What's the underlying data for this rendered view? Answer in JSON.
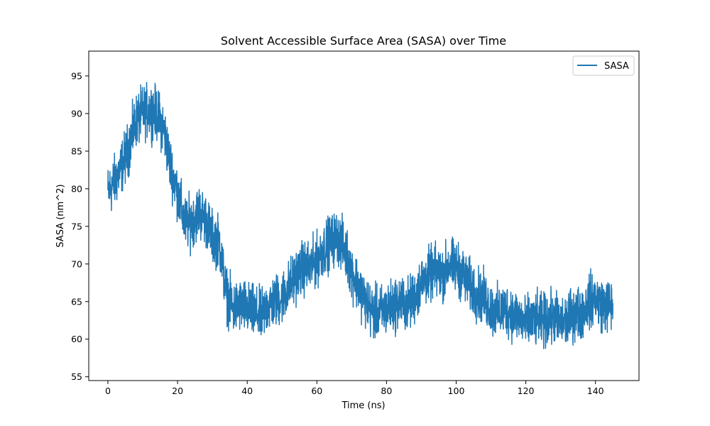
{
  "chart_data": {
    "type": "line",
    "title": "Solvent Accessible Surface Area (SASA) over Time",
    "xlabel": "Time (ns)",
    "ylabel": "SASA (nm^2)",
    "xlim": [
      -5.5,
      152.5
    ],
    "ylim": [
      54.5,
      98.3
    ],
    "xticks": [
      0,
      20,
      40,
      60,
      80,
      100,
      120,
      140
    ],
    "xtick_labels": [
      "0",
      "20",
      "40",
      "60",
      "80",
      "100",
      "120",
      "140"
    ],
    "yticks": [
      55,
      60,
      65,
      70,
      75,
      80,
      85,
      90,
      95
    ],
    "ytick_labels": [
      "55",
      "60",
      "65",
      "70",
      "75",
      "80",
      "85",
      "90",
      "95"
    ],
    "grid": false,
    "legend_position": "upper-right",
    "series": [
      {
        "name": "SASA",
        "color": "#1f77b4",
        "noise_amplitude": 3.2,
        "x": [
          0,
          2,
          4,
          6,
          8,
          10,
          12,
          14,
          16,
          18,
          20,
          22,
          24,
          26,
          28,
          30,
          32,
          34,
          36,
          38,
          40,
          42,
          44,
          46,
          48,
          50,
          52,
          54,
          56,
          58,
          60,
          62,
          64,
          66,
          68,
          70,
          72,
          74,
          76,
          78,
          80,
          82,
          84,
          86,
          88,
          90,
          92,
          94,
          96,
          98,
          100,
          102,
          104,
          106,
          108,
          110,
          112,
          114,
          116,
          118,
          120,
          122,
          124,
          126,
          128,
          130,
          132,
          134,
          136,
          138,
          140,
          142,
          144,
          145
        ],
        "y": [
          79.5,
          81.0,
          83.0,
          85.5,
          89.0,
          90.0,
          90.5,
          90.0,
          88.0,
          83.0,
          79.5,
          75.5,
          75.5,
          77.0,
          76.0,
          73.5,
          73.0,
          66.0,
          64.0,
          64.5,
          64.0,
          63.5,
          63.0,
          64.5,
          65.0,
          65.5,
          67.0,
          68.5,
          69.5,
          69.5,
          70.5,
          72.0,
          73.0,
          73.5,
          72.0,
          69.0,
          67.0,
          65.0,
          63.5,
          63.5,
          64.0,
          64.5,
          65.0,
          64.5,
          65.5,
          67.5,
          68.5,
          69.0,
          68.5,
          70.0,
          69.5,
          68.5,
          67.0,
          66.0,
          65.5,
          64.0,
          63.5,
          64.0,
          63.5,
          63.0,
          62.0,
          62.5,
          62.5,
          62.5,
          63.0,
          62.0,
          62.5,
          63.5,
          63.5,
          65.0,
          65.5,
          64.5,
          64.5,
          64.5
        ]
      }
    ]
  }
}
